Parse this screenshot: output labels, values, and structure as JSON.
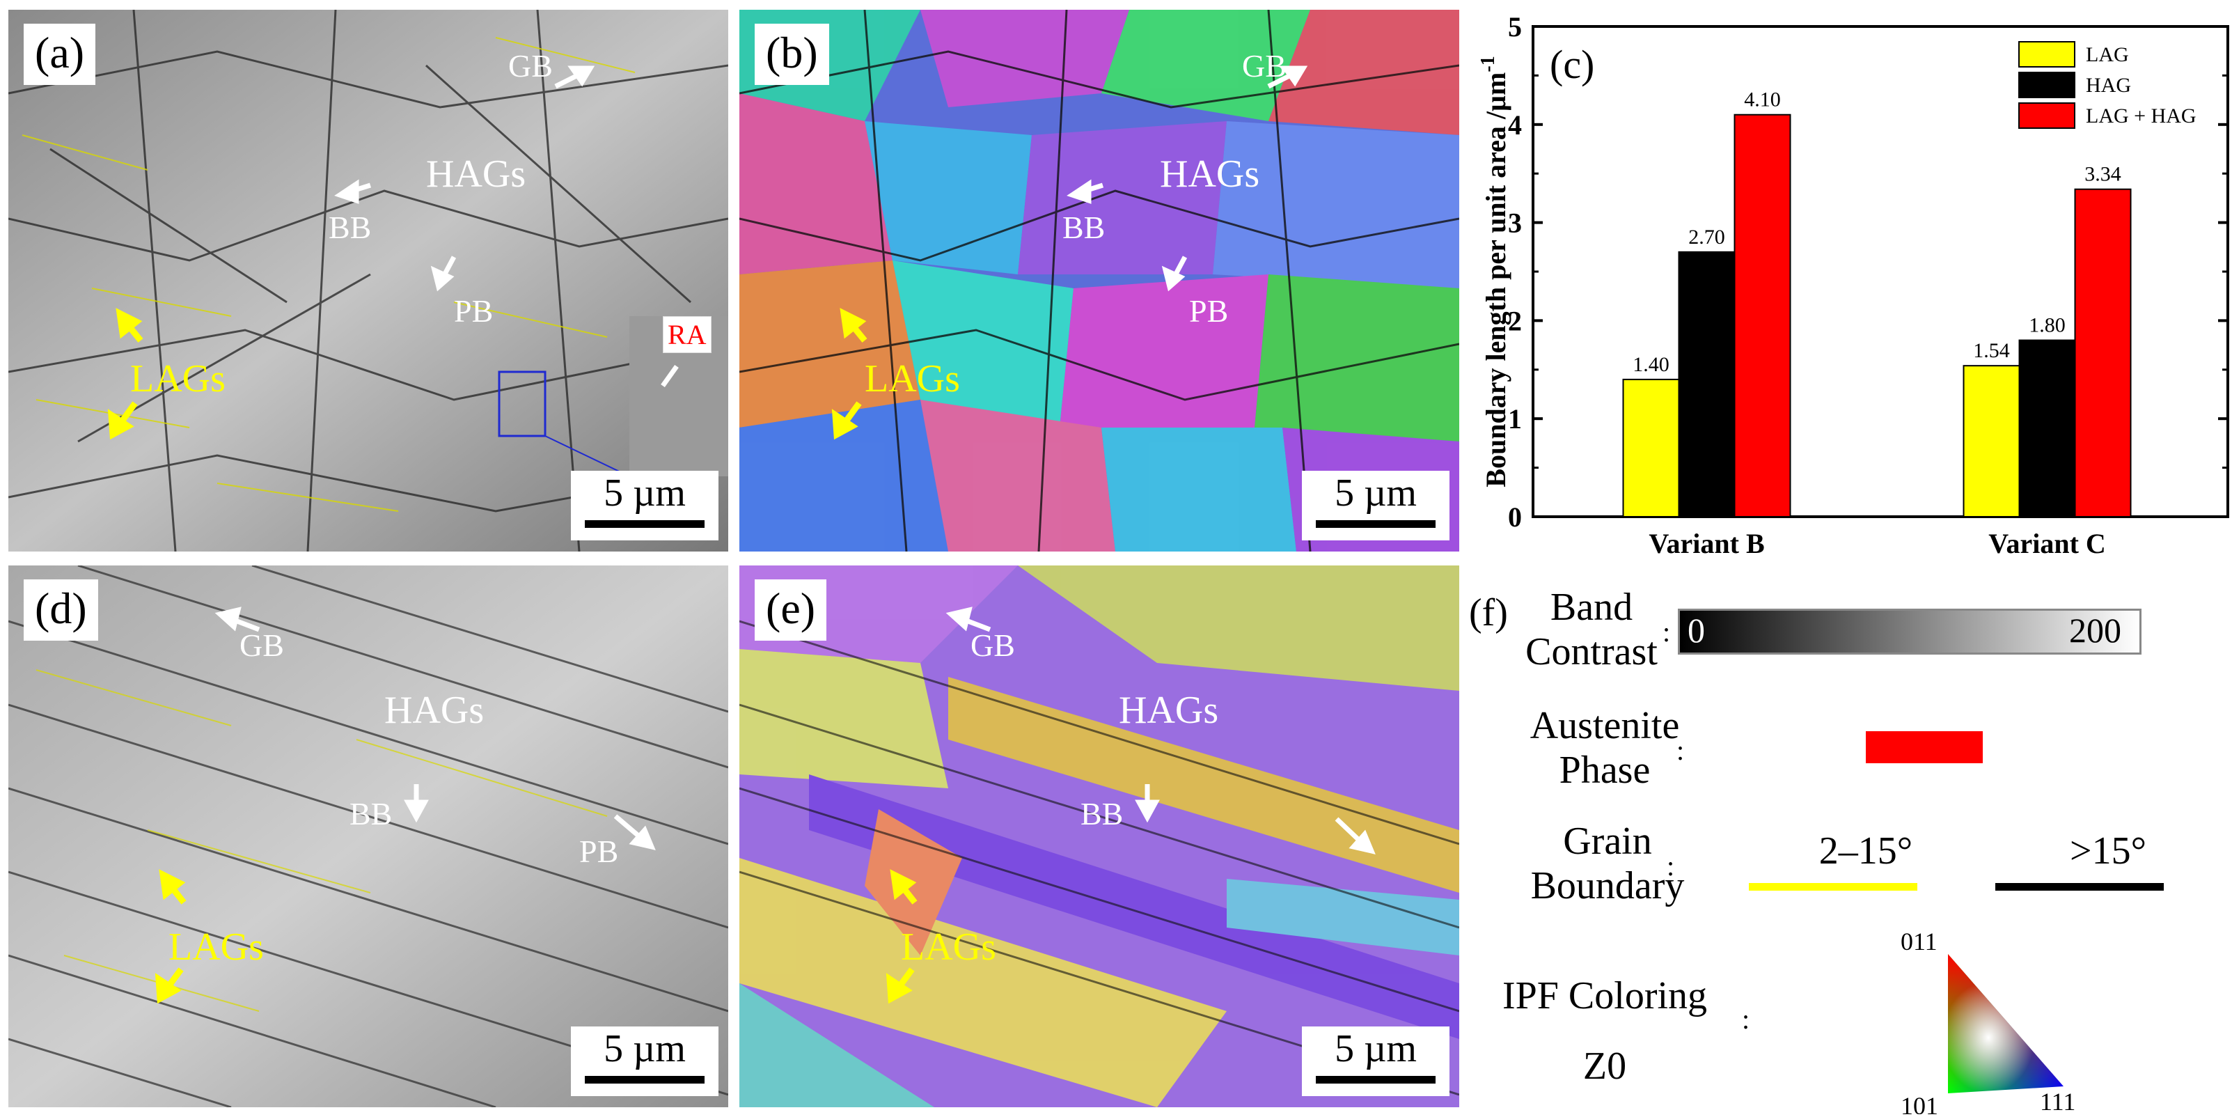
{
  "panels": {
    "a": {
      "label": "(a)",
      "gb": "GB",
      "hags": "HAGs",
      "bb": "BB",
      "pb": "PB",
      "lags": "LAGs",
      "ra": "RA",
      "scale": "5 µm"
    },
    "b": {
      "label": "(b)",
      "gb": "GB",
      "hags": "HAGs",
      "bb": "BB",
      "pb": "PB",
      "lags": "LAGs",
      "scale": "5 µm"
    },
    "d": {
      "label": "(d)",
      "gb": "GB",
      "hags": "HAGs",
      "bb": "BB",
      "pb": "PB",
      "lags": "LAGs",
      "scale": "5 µm"
    },
    "e": {
      "label": "(e)",
      "gb": "GB",
      "hags": "HAGs",
      "bb": "BB",
      "lags": "LAGs",
      "scale": "5 µm"
    }
  },
  "chart_data": {
    "type": "bar",
    "panel_label": "(c)",
    "categories": [
      "Variant B",
      "Variant C"
    ],
    "series": [
      {
        "name": "LAG",
        "values": [
          1.4,
          1.54
        ],
        "color": "#ffff00"
      },
      {
        "name": "HAG",
        "values": [
          2.7,
          1.8
        ],
        "color": "#000000"
      },
      {
        "name": "LAG + HAG",
        "values": [
          4.1,
          3.34
        ],
        "color": "#ff0000"
      }
    ],
    "value_labels": [
      [
        "1.40",
        "1.54"
      ],
      [
        "2.70",
        "1.80"
      ],
      [
        "4.10",
        "3.34"
      ]
    ],
    "ylabel": "Boundary length per unit area /µm",
    "ylabel_sup": "-1",
    "ylim": [
      0,
      5
    ],
    "yticks": [
      "0",
      "1",
      "2",
      "3",
      "4",
      "5"
    ],
    "legend_position": "top-right",
    "grid": false
  },
  "legend_f": {
    "label": "(f)",
    "band_contrast": {
      "line1": "Band",
      "line2": "Contrast",
      "min": "0",
      "max": "200"
    },
    "austenite": {
      "line1": "Austenite",
      "line2": "Phase",
      "color": "#ff0000"
    },
    "grain_boundary": {
      "line1": "Grain",
      "line2": "Boundary",
      "low": "2–15°",
      "high": ">15°",
      "low_color": "#ffff00",
      "high_color": "#000000"
    },
    "ipf": {
      "line1": "IPF Coloring",
      "line2": "Z0",
      "v011": "011",
      "v101": "101",
      "v111": "111"
    },
    "colon": ":"
  }
}
